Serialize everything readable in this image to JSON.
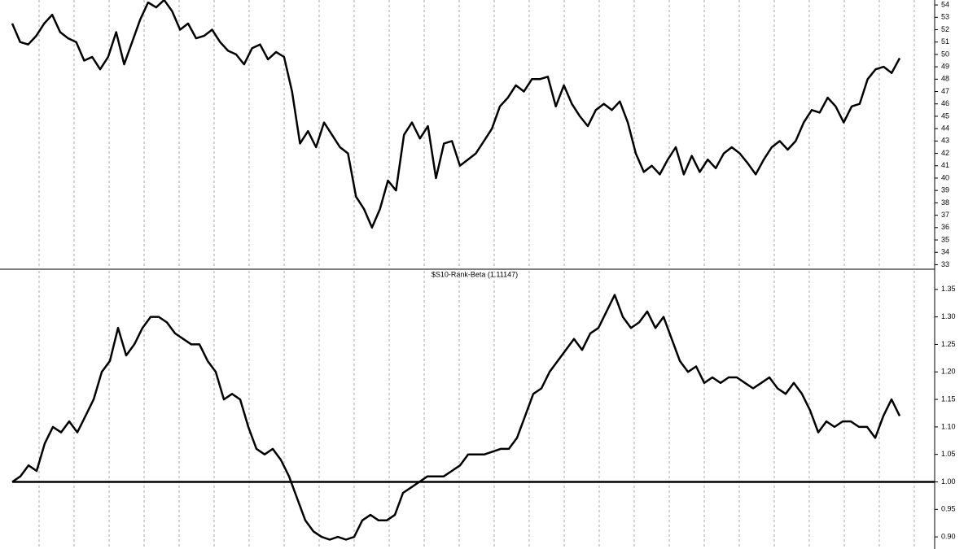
{
  "chart_data": [
    {
      "type": "line",
      "series": [
        {
          "color": "#000000",
          "values": [
            52.5,
            51.0,
            50.8,
            51.5,
            52.5,
            53.2,
            51.8,
            51.3,
            51.0,
            49.5,
            49.8,
            48.8,
            49.8,
            51.8,
            49.2,
            51.0,
            52.8,
            54.2,
            53.8,
            54.4,
            53.5,
            52.0,
            52.5,
            51.3,
            51.5,
            52.0,
            51.0,
            50.3,
            50.0,
            49.2,
            50.5,
            50.8,
            49.6,
            50.2,
            49.8,
            47.0,
            42.8,
            43.8,
            42.5,
            44.5,
            43.5,
            42.5,
            42.0,
            38.5,
            37.5,
            36.0,
            37.5,
            39.8,
            39.0,
            43.5,
            44.5,
            43.2,
            44.2,
            40.0,
            42.8,
            43.0,
            41.0,
            41.5,
            42.0,
            43.0,
            44.0,
            45.8,
            46.5,
            47.5,
            47.0,
            48.0,
            48.0,
            48.2,
            45.8,
            47.5,
            46.0,
            45.0,
            44.2,
            45.5,
            46.0,
            45.5,
            46.2,
            44.5,
            42.0,
            40.5,
            41.0,
            40.3,
            41.5,
            42.5,
            40.3,
            41.8,
            40.5,
            41.5,
            40.8,
            42.0,
            42.5,
            42.0,
            41.2,
            40.3,
            41.5,
            42.5,
            43.0,
            42.3,
            43.0,
            44.5,
            45.5,
            45.3,
            46.5,
            45.8,
            44.5,
            45.8,
            46.0,
            48.0,
            48.8,
            49.0,
            48.5,
            49.7
          ]
        }
      ],
      "ylim": [
        32.7,
        54.4
      ],
      "yticks": [
        33,
        34,
        35,
        36,
        37,
        38,
        39,
        40,
        41,
        42,
        43,
        44,
        45,
        46,
        47,
        48,
        49,
        50,
        51,
        52,
        53,
        54
      ],
      "grid": true
    },
    {
      "type": "line",
      "title": "$S10-Rank-Beta (1.11147)",
      "series": [
        {
          "color": "#000000",
          "values": [
            1.0,
            1.01,
            1.03,
            1.02,
            1.07,
            1.1,
            1.09,
            1.11,
            1.09,
            1.12,
            1.15,
            1.2,
            1.22,
            1.28,
            1.23,
            1.25,
            1.28,
            1.3,
            1.3,
            1.29,
            1.27,
            1.26,
            1.25,
            1.25,
            1.22,
            1.2,
            1.15,
            1.16,
            1.15,
            1.1,
            1.06,
            1.05,
            1.06,
            1.04,
            1.01,
            0.97,
            0.93,
            0.91,
            0.9,
            0.895,
            0.9,
            0.895,
            0.9,
            0.93,
            0.94,
            0.93,
            0.93,
            0.94,
            0.98,
            0.99,
            1.0,
            1.01,
            1.01,
            1.01,
            1.02,
            1.03,
            1.05,
            1.05,
            1.05,
            1.055,
            1.06,
            1.06,
            1.08,
            1.12,
            1.16,
            1.17,
            1.2,
            1.22,
            1.24,
            1.26,
            1.24,
            1.27,
            1.28,
            1.31,
            1.34,
            1.3,
            1.28,
            1.29,
            1.31,
            1.28,
            1.3,
            1.26,
            1.22,
            1.2,
            1.21,
            1.18,
            1.19,
            1.18,
            1.19,
            1.19,
            1.18,
            1.17,
            1.18,
            1.19,
            1.17,
            1.16,
            1.18,
            1.16,
            1.13,
            1.09,
            1.11,
            1.1,
            1.11,
            1.11,
            1.1,
            1.1,
            1.08,
            1.12,
            1.15,
            1.12
          ]
        }
      ],
      "ylim": [
        0.878,
        1.366
      ],
      "yticks": [
        {
          "value": 0.9,
          "label": "0.90"
        },
        {
          "value": 0.95,
          "label": "0.95"
        },
        {
          "value": 1.0,
          "label": "1.00"
        },
        {
          "value": 1.05,
          "label": "1.05"
        },
        {
          "value": 1.1,
          "label": "1.10"
        },
        {
          "value": 1.15,
          "label": "1.15"
        },
        {
          "value": 1.2,
          "label": "1.20"
        },
        {
          "value": 1.25,
          "label": "1.25"
        },
        {
          "value": 1.3,
          "label": "1.30"
        },
        {
          "value": 1.35,
          "label": "1.35"
        }
      ],
      "reference_line": 1.0,
      "grid": true
    }
  ]
}
